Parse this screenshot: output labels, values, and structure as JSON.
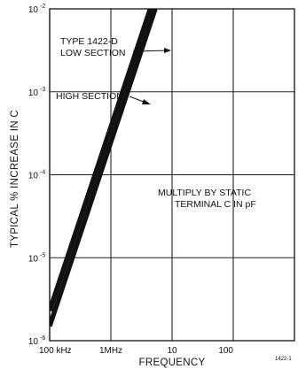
{
  "chart_data": {
    "type": "line",
    "xlabel": "FREQUENCY",
    "ylabel": "TYPICAL % INCREASE IN C",
    "x_scale": "log",
    "y_scale": "log",
    "x_range_hz": [
      100000,
      1000000000
    ],
    "y_range_percent": [
      1e-06,
      0.01
    ],
    "x_ticks": [
      {
        "value": 100000,
        "label": "100 kHz"
      },
      {
        "value": 1000000,
        "label": "1MHz"
      },
      {
        "value": 10000000,
        "label": "10"
      },
      {
        "value": 100000000,
        "label": "100"
      }
    ],
    "y_ticks": [
      {
        "value": 0.01,
        "base": "10",
        "exp": "-2"
      },
      {
        "value": 0.001,
        "base": "10",
        "exp": "-3"
      },
      {
        "value": 0.0001,
        "base": "10",
        "exp": "-4"
      },
      {
        "value": 1e-05,
        "base": "10",
        "exp": "-5"
      },
      {
        "value": 1e-06,
        "base": "10",
        "exp": "-6"
      }
    ],
    "grid": true,
    "series": [
      {
        "name": "TYPE 1422-D LOW SECTION",
        "x": [
          100000,
          4400000
        ],
        "y": [
          2.3e-06,
          0.01
        ]
      },
      {
        "name": "HIGH SECTION",
        "x": [
          100000,
          5300000
        ],
        "y": [
          1.5e-06,
          0.01
        ]
      }
    ],
    "annotations": [
      "TYPE 1422-D",
      "LOW SECTION",
      "HIGH SECTION",
      "MULTIPLY BY STATIC",
      "TERMINAL C IN pF"
    ],
    "figure_code": "1422-1"
  }
}
